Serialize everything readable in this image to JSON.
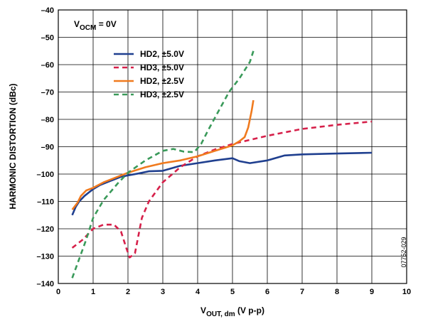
{
  "chart_data": {
    "type": "line",
    "title": "",
    "xlabel": {
      "main": "V",
      "sub": "OUT, dm",
      "suffix": " (V p-p)"
    },
    "ylabel": "HARMONIC DISTORTION (dBc)",
    "xlim": [
      0,
      10
    ],
    "ylim": [
      -140,
      -40
    ],
    "x_ticks": [
      0,
      1,
      2,
      3,
      4,
      5,
      6,
      7,
      8,
      9,
      10
    ],
    "y_ticks": [
      -40,
      -50,
      -60,
      -70,
      -80,
      -90,
      -100,
      -110,
      -120,
      -130,
      -140
    ],
    "x_tick_labels": [
      "0",
      "1",
      "2",
      "3",
      "4",
      "5",
      "6",
      "7",
      "8",
      "9",
      "10"
    ],
    "y_tick_labels": [
      "–40",
      "–50",
      "–60",
      "–70",
      "–80",
      "–90",
      "–100",
      "–110",
      "–120",
      "–130",
      "–140"
    ],
    "grid": true,
    "legend_position": "upper-left",
    "annotation": {
      "main": "V",
      "sub": "OCM",
      "suffix": " = 0V"
    },
    "figure_id": "07752-029",
    "series": [
      {
        "name": "HD2, ±5.0V",
        "color": "#1f3f8f",
        "dash": "solid",
        "x": [
          0.4,
          0.5,
          0.6,
          0.75,
          0.9,
          1.0,
          1.2,
          1.5,
          1.8,
          2.0,
          2.3,
          2.6,
          3.0,
          3.5,
          4.0,
          4.5,
          5.0,
          5.2,
          5.5,
          6.0,
          6.5,
          7.0,
          8.0,
          9.0
        ],
        "y": [
          -115,
          -112,
          -110,
          -108,
          -106.5,
          -105.5,
          -104,
          -102.5,
          -101,
          -100.5,
          -99.8,
          -99,
          -98.8,
          -97,
          -96,
          -95,
          -94.2,
          -95.3,
          -96,
          -95,
          -93.2,
          -92.8,
          -92.5,
          -92.2
        ]
      },
      {
        "name": "HD3, ±5.0V",
        "color": "#d6204a",
        "dash": "dashed",
        "x": [
          0.4,
          0.7,
          1.0,
          1.3,
          1.6,
          1.8,
          1.95,
          2.05,
          2.2,
          2.4,
          2.6,
          3.0,
          3.5,
          4.0,
          4.5,
          5.0,
          5.5,
          6.0,
          7.0,
          8.0,
          9.0
        ],
        "y": [
          -127,
          -124,
          -120,
          -118.5,
          -118.5,
          -121,
          -127,
          -130.5,
          -129,
          -116,
          -110,
          -103,
          -97.5,
          -93.5,
          -91,
          -89,
          -87.5,
          -86,
          -83.5,
          -82,
          -80.8
        ]
      },
      {
        "name": "HD2, ±2.5V",
        "color": "#f07a1e",
        "dash": "solid",
        "x": [
          0.4,
          0.55,
          0.65,
          0.8,
          1.0,
          1.3,
          1.6,
          2.0,
          2.5,
          3.0,
          3.5,
          4.0,
          4.5,
          5.0,
          5.2,
          5.35,
          5.45,
          5.55,
          5.6
        ],
        "y": [
          -113,
          -110.5,
          -108,
          -106,
          -105,
          -103,
          -101.5,
          -99.5,
          -97.5,
          -96,
          -95,
          -93.5,
          -91.5,
          -89.5,
          -88,
          -86.5,
          -83,
          -77,
          -73
        ]
      },
      {
        "name": "HD3, ±2.5V",
        "color": "#3a9a5a",
        "dash": "dashed",
        "x": [
          0.4,
          0.6,
          0.8,
          1.0,
          1.3,
          1.7,
          2.0,
          2.5,
          3.0,
          3.3,
          3.6,
          3.9,
          4.1,
          4.3,
          4.6,
          4.9,
          5.2,
          5.5,
          5.6
        ],
        "y": [
          -138,
          -131,
          -124,
          -116,
          -109.5,
          -103.5,
          -99.5,
          -95,
          -91.5,
          -90.8,
          -91.8,
          -92,
          -89,
          -84,
          -77,
          -70,
          -65,
          -59,
          -55
        ]
      }
    ]
  }
}
